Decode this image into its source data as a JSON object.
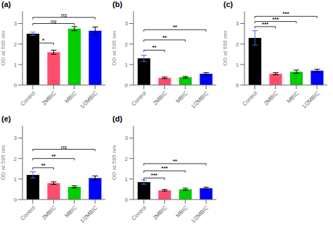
{
  "chart_data": [
    {
      "type": "bar",
      "title": "(a)",
      "ylabel": "OD at 595 nm",
      "categories": [
        "Control",
        "2MBIC",
        "MBIC",
        "1/2MBIC"
      ],
      "values": [
        2.5,
        1.6,
        2.75,
        2.65
      ],
      "errors": [
        0.08,
        0.1,
        0.1,
        0.18
      ],
      "colors": [
        "#000000",
        "#ff4d6d",
        "#00cc00",
        "#0000ff"
      ],
      "ylim": [
        0,
        3.6
      ],
      "yticks": [
        0,
        1,
        2,
        3
      ],
      "significance": [
        {
          "from": "Control",
          "to": "2MBIC",
          "y": 2.05,
          "label": "*"
        },
        {
          "from": "Control",
          "to": "MBIC",
          "y": 3.0,
          "label": "ns"
        },
        {
          "from": "Control",
          "to": "1/2MBIC",
          "y": 3.3,
          "label": "ns"
        }
      ]
    },
    {
      "type": "bar",
      "title": "(b)",
      "ylabel": "OD at 595 nm",
      "categories": [
        "Control",
        "2MBIC",
        "MBIC",
        "1/2MBIC"
      ],
      "values": [
        1.3,
        0.35,
        0.38,
        0.55
      ],
      "errors": [
        0.15,
        0.04,
        0.04,
        0.05
      ],
      "colors": [
        "#000000",
        "#ff4d6d",
        "#00cc00",
        "#0000ff"
      ],
      "ylim": [
        0,
        3.6
      ],
      "yticks": [
        0,
        1,
        2,
        3
      ],
      "significance": [
        {
          "from": "Control",
          "to": "2MBIC",
          "y": 1.7,
          "label": "**"
        },
        {
          "from": "Control",
          "to": "MBIC",
          "y": 2.2,
          "label": "**"
        },
        {
          "from": "Control",
          "to": "1/2MBIC",
          "y": 2.7,
          "label": "**"
        }
      ]
    },
    {
      "type": "bar",
      "title": "(c)",
      "ylabel": "OD at 595 nm",
      "categories": [
        "Control",
        "2MBIC",
        "MBIC",
        "1/2MBIC"
      ],
      "values": [
        2.3,
        0.55,
        0.65,
        0.7
      ],
      "errors": [
        0.35,
        0.05,
        0.08,
        0.07
      ],
      "colors": [
        "#000000",
        "#ff4d6d",
        "#00cc00",
        "#0000ff"
      ],
      "ylim": [
        0,
        3.6
      ],
      "yticks": [
        0,
        1,
        2,
        3
      ],
      "significance": [
        {
          "from": "Control",
          "to": "2MBIC",
          "y": 2.85,
          "label": "***"
        },
        {
          "from": "Control",
          "to": "MBIC",
          "y": 3.1,
          "label": "***"
        },
        {
          "from": "Control",
          "to": "1/2MBIC",
          "y": 3.35,
          "label": "***"
        }
      ]
    },
    {
      "type": "bar",
      "title": "(e)",
      "ylabel": "OD at 595 nm",
      "categories": [
        "Control",
        "2MBIC",
        "MBIC",
        "1/2MBIC"
      ],
      "values": [
        1.2,
        0.8,
        0.62,
        1.05
      ],
      "errors": [
        0.15,
        0.06,
        0.05,
        0.1
      ],
      "colors": [
        "#000000",
        "#ff4d6d",
        "#00cc00",
        "#0000ff"
      ],
      "ylim": [
        0,
        3.6
      ],
      "yticks": [
        0,
        1,
        2,
        3
      ],
      "significance": [
        {
          "from": "Control",
          "to": "2MBIC",
          "y": 1.55,
          "label": "**"
        },
        {
          "from": "Control",
          "to": "MBIC",
          "y": 2.0,
          "label": "**"
        },
        {
          "from": "Control",
          "to": "1/2MBIC",
          "y": 2.45,
          "label": "ns"
        }
      ]
    },
    {
      "type": "bar",
      "title": "(d)",
      "ylabel": "OD at 595 nm",
      "categories": [
        "Control",
        "2MBIC",
        "MBIC",
        "1/2MBIC"
      ],
      "values": [
        0.85,
        0.45,
        0.5,
        0.55
      ],
      "errors": [
        0.1,
        0.04,
        0.05,
        0.05
      ],
      "colors": [
        "#000000",
        "#ff4d6d",
        "#00cc00",
        "#0000ff"
      ],
      "ylim": [
        0,
        3.6
      ],
      "yticks": [
        0,
        1,
        2,
        3
      ],
      "significance": [
        {
          "from": "Control",
          "to": "2MBIC",
          "y": 1.05,
          "label": "***"
        },
        {
          "from": "Control",
          "to": "MBIC",
          "y": 1.4,
          "label": "***"
        },
        {
          "from": "Control",
          "to": "1/2MBIC",
          "y": 1.75,
          "label": "**"
        }
      ]
    }
  ]
}
